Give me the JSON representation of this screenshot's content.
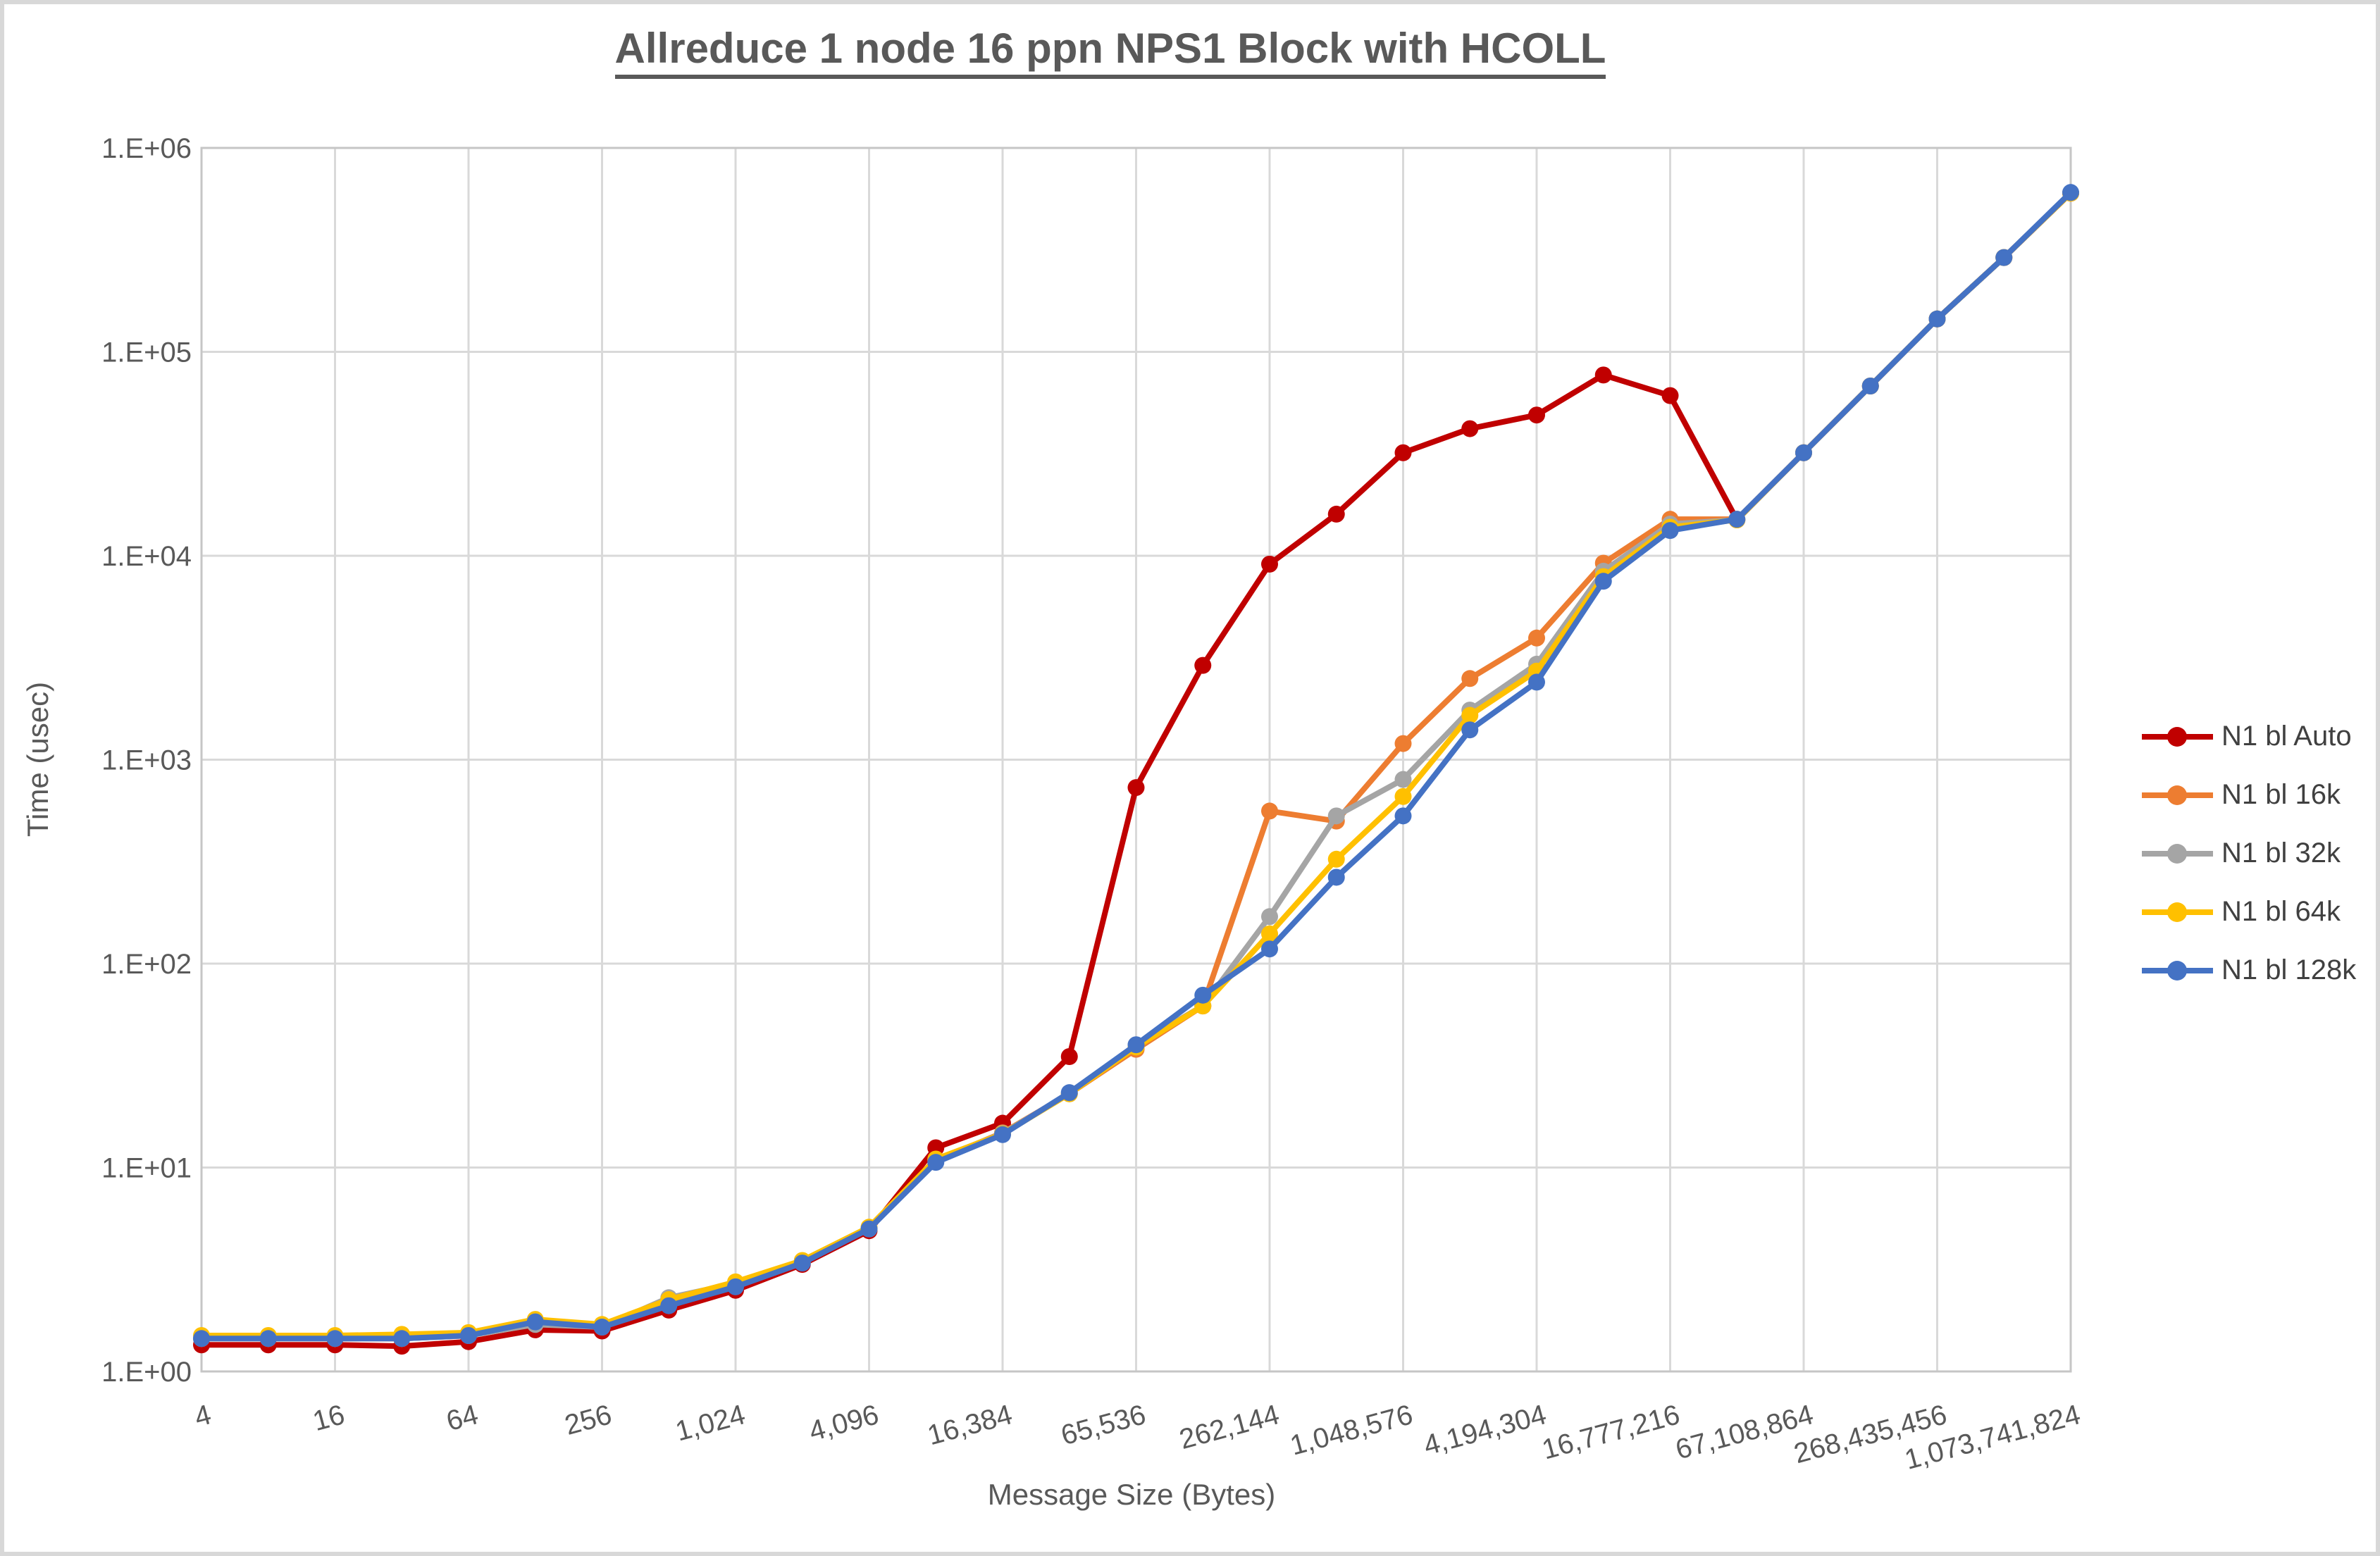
{
  "title": "Allreduce 1 node 16 ppn NPS1 Block with HCOLL",
  "axes": {
    "y_title": "Time (usec)",
    "x_title": "Message Size (Bytes)",
    "y_tick_labels": [
      "1.E+00",
      "1.E+01",
      "1.E+02",
      "1.E+03",
      "1.E+04",
      "1.E+05",
      "1.E+06"
    ],
    "x_tick_labels": [
      "4",
      "16",
      "64",
      "256",
      "1,024",
      "4,096",
      "16,384",
      "65,536",
      "262,144",
      "1,048,576",
      "4,194,304",
      "16,777,216",
      "67,108,864",
      "268,435,456",
      "1,073,741,824"
    ]
  },
  "chart_data": {
    "type": "line",
    "title": "Allreduce 1 node 16 ppn NPS1 Block with HCOLL",
    "xlabel": "Message Size (Bytes)",
    "ylabel": "Time (usec)",
    "x_scale": "log2",
    "y_scale": "log10",
    "ylim": [
      1,
      1000000
    ],
    "grid": true,
    "legend_position": "right",
    "categories": [
      4,
      8,
      16,
      32,
      64,
      128,
      256,
      512,
      1024,
      2048,
      4096,
      8192,
      16384,
      32768,
      65536,
      131072,
      262144,
      524288,
      1048576,
      2097152,
      4194304,
      8388608,
      16777216,
      33554432,
      67108864,
      134217728,
      268435456,
      536870912,
      1073741824
    ],
    "series": [
      {
        "name": "N1 bl Auto",
        "color": "#C00000",
        "values": [
          1.35,
          1.35,
          1.35,
          1.33,
          1.4,
          1.6,
          1.58,
          2.0,
          2.5,
          3.35,
          4.9,
          12.5,
          16.5,
          35,
          730,
          2900,
          9100,
          16000,
          32000,
          42000,
          49000,
          77000,
          61000,
          15000,
          32000,
          68000,
          145000,
          290000,
          600000
        ]
      },
      {
        "name": "N1 bl 16k",
        "color": "#ED7D31",
        "values": [
          1.45,
          1.45,
          1.45,
          1.45,
          1.5,
          1.75,
          1.65,
          2.15,
          2.65,
          3.45,
          5.0,
          10.8,
          14.8,
          23,
          38,
          62,
          560,
          500,
          1200,
          2500,
          3950,
          9200,
          15100,
          15100,
          32000,
          68000,
          145000,
          290000,
          600000
        ]
      },
      {
        "name": "N1 bl 32k",
        "color": "#A5A5A5",
        "values": [
          1.45,
          1.45,
          1.45,
          1.45,
          1.5,
          1.7,
          1.65,
          2.3,
          2.7,
          3.45,
          5.0,
          10.9,
          14.7,
          23,
          40,
          62,
          170,
          530,
          800,
          1750,
          2940,
          8400,
          14300,
          15000,
          32000,
          68000,
          145000,
          290000,
          600000
        ]
      },
      {
        "name": "N1 bl 64k",
        "color": "#FFC000",
        "values": [
          1.5,
          1.5,
          1.5,
          1.52,
          1.55,
          1.8,
          1.7,
          2.25,
          2.75,
          3.5,
          5.1,
          11.0,
          14.6,
          23,
          39,
          62,
          140,
          325,
          660,
          1650,
          2720,
          7900,
          13800,
          15000,
          32000,
          68000,
          145000,
          290000,
          600000
        ]
      },
      {
        "name": "N1 bl 128k",
        "color": "#4472C4",
        "values": [
          1.45,
          1.45,
          1.45,
          1.45,
          1.5,
          1.75,
          1.65,
          2.1,
          2.6,
          3.4,
          5.0,
          10.6,
          14.5,
          23.3,
          40,
          70,
          118,
          265,
          530,
          1400,
          2400,
          7500,
          13300,
          15100,
          32000,
          68000,
          145000,
          290000,
          605000
        ]
      }
    ]
  }
}
